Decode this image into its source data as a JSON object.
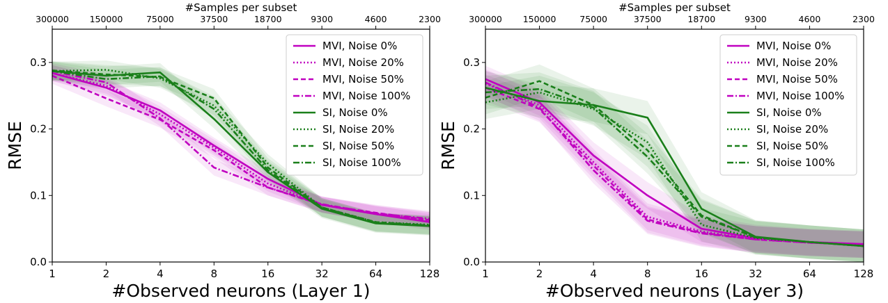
{
  "chart_data": [
    {
      "type": "line",
      "xlabel": "#Observed neurons (Layer 1)",
      "ylabel": "RMSE",
      "top_xlabel": "#Samples per subset",
      "x": [
        1,
        2,
        4,
        8,
        16,
        32,
        64,
        128
      ],
      "x_tick_labels": [
        "1",
        "2",
        "4",
        "8",
        "16",
        "32",
        "64",
        "128"
      ],
      "top_tick_labels": [
        "300000",
        "150000",
        "75000",
        "37500",
        "18700",
        "9300",
        "4600",
        "2300"
      ],
      "x_scale": "log2",
      "ylim": [
        0.0,
        0.35
      ],
      "y_ticks": [
        "0.0",
        "0.1",
        "0.2",
        "0.3"
      ],
      "legend_position": "top-right",
      "grid": false,
      "series": [
        {
          "name": "MVI, Noise 0%",
          "color": "#c000c0",
          "dash": "solid",
          "values": [
            0.284,
            0.262,
            0.228,
            0.175,
            0.125,
            0.086,
            0.072,
            0.06
          ],
          "band": 0.012
        },
        {
          "name": "MVI, Noise 20%",
          "color": "#c000c0",
          "dash": "dotted",
          "values": [
            0.284,
            0.265,
            0.222,
            0.172,
            0.118,
            0.086,
            0.072,
            0.063
          ],
          "band": 0.012
        },
        {
          "name": "MVI, Noise 50%",
          "color": "#c000c0",
          "dash": "dashed",
          "values": [
            0.28,
            0.246,
            0.214,
            0.168,
            0.112,
            0.086,
            0.074,
            0.063
          ],
          "band": 0.012
        },
        {
          "name": "MVI, Noise 100%",
          "color": "#c000c0",
          "dash": "dashdot",
          "values": [
            0.287,
            0.27,
            0.216,
            0.142,
            0.112,
            0.087,
            0.073,
            0.065
          ],
          "band": 0.012
        },
        {
          "name": "SI, Noise 0%",
          "color": "#1a7f1a",
          "dash": "solid",
          "values": [
            0.287,
            0.28,
            0.285,
            0.215,
            0.135,
            0.08,
            0.058,
            0.054
          ],
          "band": 0.014
        },
        {
          "name": "SI, Noise 20%",
          "color": "#1a7f1a",
          "dash": "dotted",
          "values": [
            0.287,
            0.289,
            0.276,
            0.235,
            0.148,
            0.082,
            0.06,
            0.056
          ],
          "band": 0.014
        },
        {
          "name": "SI, Noise 50%",
          "color": "#1a7f1a",
          "dash": "dashed",
          "values": [
            0.288,
            0.282,
            0.278,
            0.246,
            0.142,
            0.082,
            0.06,
            0.055
          ],
          "band": 0.014
        },
        {
          "name": "SI, Noise 100%",
          "color": "#1a7f1a",
          "dash": "dashdot",
          "values": [
            0.287,
            0.275,
            0.279,
            0.23,
            0.138,
            0.082,
            0.059,
            0.055
          ],
          "band": 0.014
        }
      ]
    },
    {
      "type": "line",
      "xlabel": "#Observed neurons (Layer 3)",
      "ylabel": "RMSE",
      "top_xlabel": "#Samples per subset",
      "x": [
        1,
        2,
        4,
        8,
        16,
        32,
        64,
        128
      ],
      "x_tick_labels": [
        "1",
        "2",
        "4",
        "8",
        "16",
        "32",
        "64",
        "128"
      ],
      "top_tick_labels": [
        "300000",
        "150000",
        "75000",
        "37500",
        "18700",
        "9300",
        "4600",
        "2300"
      ],
      "x_scale": "log2",
      "ylim": [
        0.0,
        0.35
      ],
      "y_ticks": [
        "0.0",
        "0.1",
        "0.2",
        "0.3"
      ],
      "legend_position": "top-right",
      "grid": false,
      "series": [
        {
          "name": "MVI, Noise 0%",
          "color": "#c000c0",
          "dash": "solid",
          "values": [
            0.275,
            0.24,
            0.16,
            0.1,
            0.05,
            0.036,
            0.03,
            0.027
          ],
          "band": 0.02
        },
        {
          "name": "MVI, Noise 20%",
          "color": "#c000c0",
          "dash": "dotted",
          "values": [
            0.268,
            0.236,
            0.15,
            0.068,
            0.046,
            0.034,
            0.029,
            0.026
          ],
          "band": 0.02
        },
        {
          "name": "MVI, Noise 50%",
          "color": "#c000c0",
          "dash": "dashed",
          "values": [
            0.262,
            0.23,
            0.145,
            0.064,
            0.044,
            0.034,
            0.029,
            0.026
          ],
          "band": 0.02
        },
        {
          "name": "MVI, Noise 100%",
          "color": "#c000c0",
          "dash": "dashdot",
          "values": [
            0.27,
            0.232,
            0.138,
            0.062,
            0.043,
            0.034,
            0.029,
            0.026
          ],
          "band": 0.02
        },
        {
          "name": "SI, Noise 0%",
          "color": "#1a7f1a",
          "dash": "solid",
          "values": [
            0.262,
            0.242,
            0.236,
            0.217,
            0.08,
            0.038,
            0.03,
            0.024
          ],
          "band": 0.025
        },
        {
          "name": "SI, Noise 20%",
          "color": "#1a7f1a",
          "dash": "dotted",
          "values": [
            0.24,
            0.255,
            0.23,
            0.18,
            0.056,
            0.036,
            0.03,
            0.024
          ],
          "band": 0.025
        },
        {
          "name": "SI, Noise 50%",
          "color": "#1a7f1a",
          "dash": "dashed",
          "values": [
            0.247,
            0.272,
            0.236,
            0.168,
            0.07,
            0.037,
            0.03,
            0.024
          ],
          "band": 0.025
        },
        {
          "name": "SI, Noise 100%",
          "color": "#1a7f1a",
          "dash": "dashdot",
          "values": [
            0.255,
            0.26,
            0.232,
            0.158,
            0.068,
            0.037,
            0.03,
            0.024
          ],
          "band": 0.025
        }
      ]
    }
  ]
}
